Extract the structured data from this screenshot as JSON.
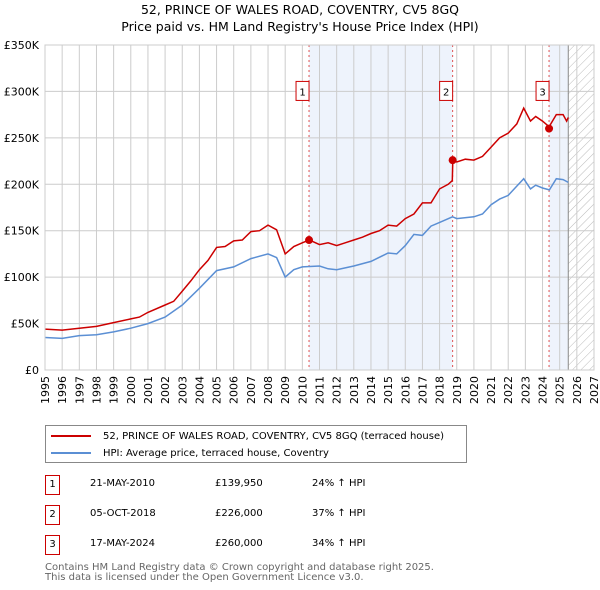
{
  "title_line1": "52, PRINCE OF WALES ROAD, COVENTRY, CV5 8GQ",
  "title_line2": "Price paid vs. HM Land Registry's House Price Index (HPI)",
  "colors": {
    "property": "#cc0000",
    "hpi": "#5b8fd4",
    "shade": "#eef3fc",
    "grid": "#cccccc"
  },
  "chart_data": {
    "type": "line",
    "title": "52, PRINCE OF WALES ROAD, COVENTRY, CV5 8GQ — Price paid vs. HM Land Registry's House Price Index (HPI)",
    "xlim": [
      1995,
      2027
    ],
    "ylim": [
      0,
      350000
    ],
    "x_ticks": [
      "1995",
      "1996",
      "1997",
      "1998",
      "1999",
      "2000",
      "2001",
      "2002",
      "2003",
      "2004",
      "2005",
      "2006",
      "2007",
      "2008",
      "2009",
      "2010",
      "2011",
      "2012",
      "2013",
      "2014",
      "2015",
      "2016",
      "2017",
      "2018",
      "2019",
      "2020",
      "2021",
      "2022",
      "2023",
      "2024",
      "2025",
      "2026",
      "2027"
    ],
    "y_ticks": [
      {
        "v": 0,
        "label": "£0"
      },
      {
        "v": 50000,
        "label": "£50K"
      },
      {
        "v": 100000,
        "label": "£100K"
      },
      {
        "v": 150000,
        "label": "£150K"
      },
      {
        "v": 200000,
        "label": "£200K"
      },
      {
        "v": 250000,
        "label": "£250K"
      },
      {
        "v": 300000,
        "label": "£300K"
      },
      {
        "v": 350000,
        "label": "£350K"
      }
    ],
    "grid": true,
    "legend_placement": "below",
    "series": [
      {
        "name": "52, PRINCE OF WALES ROAD, COVENTRY, CV5 8GQ (terraced house)",
        "color": "#cc0000",
        "x": [
          1995,
          1996,
          1997,
          1998,
          1999,
          2000,
          2000.5,
          2001,
          2002,
          2002.5,
          2003,
          2003.5,
          2004,
          2004.5,
          2005,
          2005.5,
          2006,
          2006.5,
          2007,
          2007.5,
          2008,
          2008.5,
          2009,
          2009.5,
          2010,
          2010.4,
          2011,
          2011.5,
          2012,
          2012.5,
          2013,
          2013.5,
          2014,
          2014.5,
          2015,
          2015.5,
          2016,
          2016.5,
          2017,
          2017.5,
          2018,
          2018.5,
          2018.74,
          2018.77,
          2019,
          2019.5,
          2020,
          2020.5,
          2021,
          2021.5,
          2022,
          2022.5,
          2022.9,
          2023.3,
          2023.6,
          2024,
          2024.38,
          2024.8,
          2025.2,
          2025.4,
          2025.5
        ],
        "y": [
          44000,
          43000,
          45000,
          47000,
          51000,
          55000,
          57000,
          62000,
          70000,
          74000,
          85000,
          96000,
          108000,
          118000,
          132000,
          133000,
          139000,
          140000,
          149000,
          150000,
          156000,
          151000,
          125000,
          133000,
          137000,
          140000,
          135000,
          137000,
          134000,
          137000,
          140000,
          143000,
          147000,
          150000,
          156000,
          155000,
          163000,
          168000,
          180000,
          180000,
          195000,
          200000,
          204000,
          226000,
          224000,
          227000,
          226000,
          230000,
          240000,
          250000,
          255000,
          265000,
          282000,
          268000,
          273000,
          268000,
          262000,
          275000,
          275000,
          268000,
          272000
        ]
      },
      {
        "name": "HPI: Average price, terraced house, Coventry",
        "color": "#5b8fd4",
        "x": [
          1995,
          1996,
          1997,
          1998,
          1999,
          2000,
          2001,
          2002,
          2003,
          2004,
          2005,
          2006,
          2007,
          2008,
          2008.5,
          2009,
          2009.5,
          2010,
          2011,
          2011.5,
          2012,
          2012.5,
          2013,
          2014,
          2015,
          2015.5,
          2016,
          2016.5,
          2017,
          2017.5,
          2018,
          2018.75,
          2019,
          2020,
          2020.5,
          2021,
          2021.5,
          2022,
          2022.5,
          2022.9,
          2023.3,
          2023.6,
          2024,
          2024.4,
          2024.8,
          2025.2,
          2025.5
        ],
        "y": [
          35000,
          34000,
          37000,
          38000,
          41000,
          45000,
          50000,
          57000,
          70000,
          88000,
          107000,
          111000,
          120000,
          125000,
          121000,
          100000,
          108000,
          111000,
          112000,
          109000,
          108000,
          110000,
          112000,
          117000,
          126000,
          125000,
          134000,
          146000,
          145000,
          155000,
          159000,
          165000,
          163000,
          165000,
          168000,
          178000,
          184000,
          188000,
          198000,
          206000,
          195000,
          199000,
          196000,
          194000,
          206000,
          205000,
          202000
        ]
      }
    ],
    "sales": [
      {
        "id": "1",
        "x": 2010.39,
        "price": 139950
      },
      {
        "id": "2",
        "x": 2018.76,
        "price": 226000
      },
      {
        "id": "3",
        "x": 2024.38,
        "price": 260000
      }
    ],
    "forecast_hatch_from": 2025.5
  },
  "legend": {
    "property": "52, PRINCE OF WALES ROAD, COVENTRY, CV5 8GQ (terraced house)",
    "hpi": "HPI: Average price, terraced house, Coventry"
  },
  "transactions": [
    {
      "num": "1",
      "date": "21-MAY-2010",
      "price": "£139,950",
      "delta": "24% ↑ HPI"
    },
    {
      "num": "2",
      "date": "05-OCT-2018",
      "price": "£226,000",
      "delta": "37% ↑ HPI"
    },
    {
      "num": "3",
      "date": "17-MAY-2024",
      "price": "£260,000",
      "delta": "34% ↑ HPI"
    }
  ],
  "footer_line1": "Contains HM Land Registry data © Crown copyright and database right 2025.",
  "footer_line2": "This data is licensed under the Open Government Licence v3.0."
}
